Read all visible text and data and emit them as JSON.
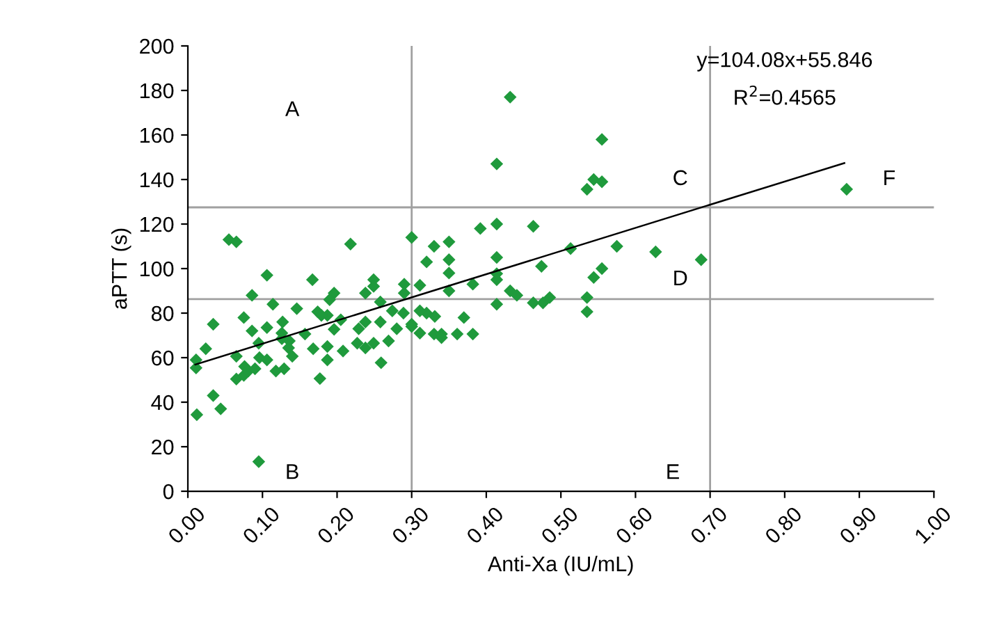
{
  "chart_data": {
    "type": "scatter",
    "xlabel": "Anti-Xa (IU/mL)",
    "ylabel": "aPTT (s)",
    "xlim": [
      0,
      1
    ],
    "ylim": [
      0,
      200
    ],
    "xticks": [
      {
        "value": 0,
        "label": "0.00"
      },
      {
        "value": 0.1,
        "label": "0.10"
      },
      {
        "value": 0.2,
        "label": "0.20"
      },
      {
        "value": 0.3,
        "label": "0.30"
      },
      {
        "value": 0.4,
        "label": "0.40"
      },
      {
        "value": 0.5,
        "label": "0.50"
      },
      {
        "value": 0.6,
        "label": "0.60"
      },
      {
        "value": 0.7,
        "label": "0.70"
      },
      {
        "value": 0.8,
        "label": "0.80"
      },
      {
        "value": 0.9,
        "label": "0.90"
      },
      {
        "value": 1,
        "label": "1.00"
      }
    ],
    "yticks": [
      0,
      20,
      40,
      60,
      80,
      100,
      120,
      140,
      160,
      180,
      200
    ],
    "grid": false,
    "series": [
      {
        "marker": "diamond",
        "color": "#1f9a3c",
        "x": [
          0.055,
          0.065,
          0.218,
          0.3,
          0.33,
          0.32,
          0.106,
          0.167,
          0.249,
          0.249,
          0.29,
          0.29,
          0.311,
          0.086,
          0.196,
          0.238,
          0.19,
          0.114,
          0.146,
          0.174,
          0.187,
          0.258,
          0.274,
          0.289,
          0.32,
          0.034,
          0.075,
          0.106,
          0.127,
          0.086,
          0.126,
          0.136,
          0.157,
          0.179,
          0.205,
          0.229,
          0.238,
          0.258,
          0.28,
          0.3,
          0.311,
          0.196,
          0.024,
          0.011,
          0.011,
          0.065,
          0.076,
          0.095,
          0.096,
          0.106,
          0.118,
          0.129,
          0.126,
          0.135,
          0.14,
          0.168,
          0.187,
          0.187,
          0.177,
          0.208,
          0.227,
          0.238,
          0.249,
          0.259,
          0.269,
          0.065,
          0.075,
          0.081,
          0.09,
          0.034,
          0.044,
          0.012,
          0.095,
          0.33,
          0.432,
          0.555,
          0.414,
          0.535,
          0.544,
          0.555,
          0.392,
          0.414,
          0.463,
          0.35,
          0.35,
          0.35,
          0.414,
          0.414,
          0.414,
          0.382,
          0.35,
          0.474,
          0.513,
          0.575,
          0.627,
          0.555,
          0.544,
          0.432,
          0.441,
          0.414,
          0.463,
          0.476,
          0.485,
          0.535,
          0.535,
          0.311,
          0.331,
          0.37,
          0.3,
          0.34,
          0.34,
          0.361,
          0.382,
          0.883,
          0.688
        ],
        "values": [
          113,
          112,
          111,
          114,
          110,
          103,
          97,
          95,
          95,
          92,
          93,
          89,
          92.5,
          88,
          89,
          89,
          86,
          84,
          82,
          80.6,
          79,
          85,
          81,
          80,
          80,
          75,
          78,
          73.5,
          76,
          72,
          71,
          67.5,
          70.6,
          79,
          77,
          73,
          76,
          76,
          73,
          74,
          71,
          72.7,
          64,
          59,
          55.4,
          60.6,
          56,
          66.5,
          60,
          59,
          54,
          55,
          68.5,
          64.4,
          60.6,
          64,
          65,
          59,
          50.6,
          63,
          66.5,
          64.4,
          66.5,
          57.7,
          67.5,
          50.4,
          52,
          54,
          55,
          43,
          37,
          34.4,
          13.3,
          70.6,
          177,
          158,
          147,
          135.6,
          140,
          139,
          118,
          120,
          119,
          112,
          104,
          98,
          105,
          97.7,
          95,
          93,
          90,
          101,
          109,
          110,
          107.5,
          100,
          96,
          90,
          88,
          84,
          84.6,
          84.6,
          87,
          87,
          80.6,
          81,
          78.5,
          78,
          75,
          70.6,
          69,
          70.6,
          70.6,
          135.6,
          104
        ]
      },
      {
        "type": "line",
        "color": "#000000",
        "x": [
          0.01,
          0.88
        ],
        "values": [
          56.9,
          147.4
        ]
      }
    ],
    "ref_lines": [
      {
        "axis": "x",
        "value": 0.3,
        "color": "#a0a0a0"
      },
      {
        "axis": "x",
        "value": 0.7,
        "color": "#a0a0a0"
      },
      {
        "axis": "y",
        "value": 86.3,
        "color": "#a0a0a0"
      },
      {
        "axis": "y",
        "value": 127.5,
        "color": "#a0a0a0"
      }
    ],
    "annotations": [
      "A",
      "B",
      "C",
      "D",
      "E",
      "F",
      "y=104.08x+55.846",
      "R$^{2}$=0.4565"
    ]
  }
}
